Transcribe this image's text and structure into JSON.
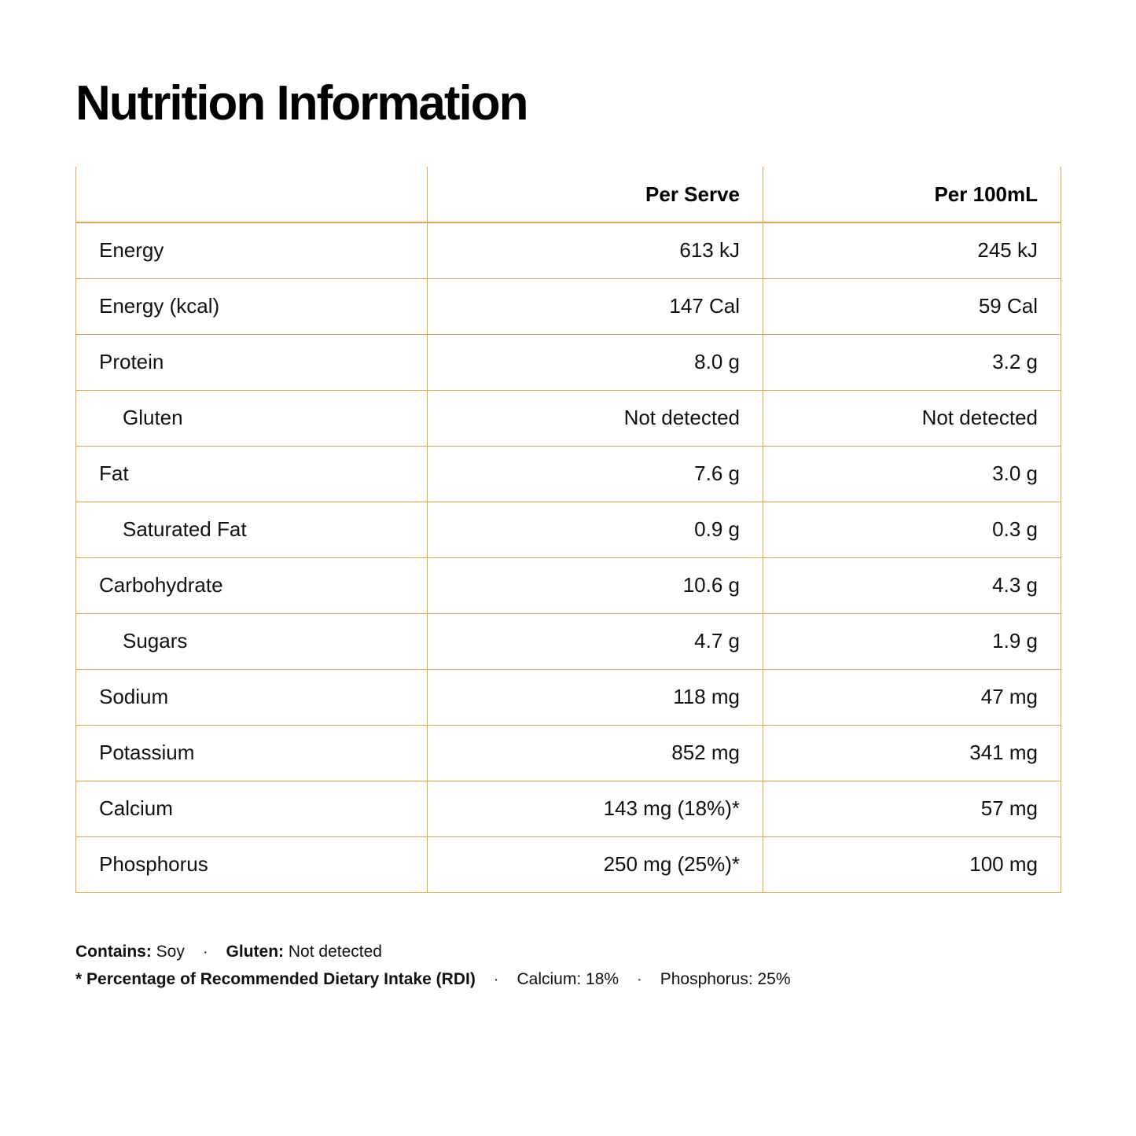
{
  "title": "Nutrition Information",
  "table": {
    "headers": [
      "",
      "Per Serve",
      "Per 100mL"
    ],
    "rows": [
      {
        "name": "Energy",
        "per_serve": "613 kJ",
        "per_100ml": "245 kJ",
        "indent": false
      },
      {
        "name": "Energy (kcal)",
        "per_serve": "147 Cal",
        "per_100ml": "59 Cal",
        "indent": false
      },
      {
        "name": "Protein",
        "per_serve": "8.0 g",
        "per_100ml": "3.2 g",
        "indent": false
      },
      {
        "name": "Gluten",
        "per_serve": "Not detected",
        "per_100ml": "Not detected",
        "indent": true
      },
      {
        "name": "Fat",
        "per_serve": "7.6 g",
        "per_100ml": "3.0 g",
        "indent": false
      },
      {
        "name": "Saturated Fat",
        "per_serve": "0.9 g",
        "per_100ml": "0.3 g",
        "indent": true
      },
      {
        "name": "Carbohydrate",
        "per_serve": "10.6 g",
        "per_100ml": "4.3 g",
        "indent": false
      },
      {
        "name": "Sugars",
        "per_serve": "4.7 g",
        "per_100ml": "1.9 g",
        "indent": true
      },
      {
        "name": "Sodium",
        "per_serve": "118 mg",
        "per_100ml": "47 mg",
        "indent": false
      },
      {
        "name": "Potassium",
        "per_serve": "852 mg",
        "per_100ml": "341 mg",
        "indent": false
      },
      {
        "name": "Calcium",
        "per_serve": "143 mg (18%)*",
        "per_100ml": "57 mg",
        "indent": false
      },
      {
        "name": "Phosphorus",
        "per_serve": "250 mg (25%)*",
        "per_100ml": "100 mg",
        "indent": false
      }
    ]
  },
  "footnotes": {
    "contains_label": "Contains:",
    "contains_value": "Soy",
    "gluten_label": "Gluten:",
    "gluten_value": "Not detected",
    "rdi_label": "* Percentage of Recommended Dietary Intake (RDI)",
    "calcium_rdi": "Calcium: 18%",
    "phosphorus_rdi": "Phosphorus: 25%",
    "separator": "·"
  },
  "colors": {
    "border": "#e8a24b",
    "text": "#111111"
  }
}
